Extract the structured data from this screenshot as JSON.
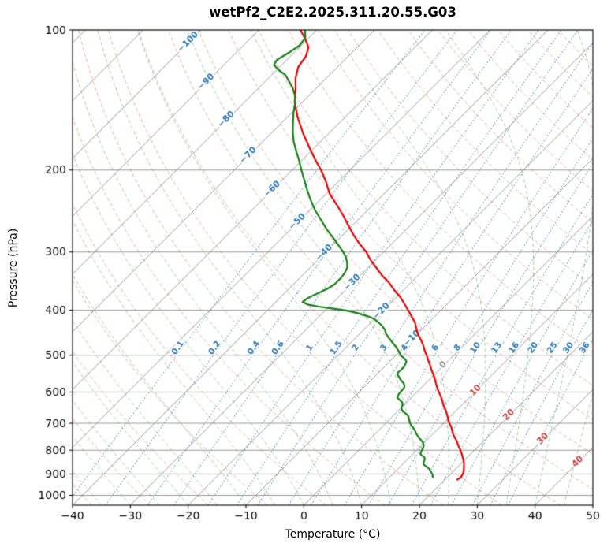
{
  "chart_data": {
    "type": "skewt_log_p",
    "title": "wetPf2_C2E2.2025.311.20.55.G03",
    "xlabel": "Temperature (°C)",
    "ylabel": "Pressure (hPa)",
    "xlim": [
      -40,
      50
    ],
    "plim": [
      100,
      1050
    ],
    "x_ticks": [
      -40,
      -30,
      -20,
      -10,
      0,
      10,
      20,
      30,
      40,
      50
    ],
    "pressure_ticks": [
      100,
      200,
      300,
      400,
      500,
      600,
      700,
      800,
      900,
      1000
    ],
    "pressure_gridlines": [
      100,
      200,
      300,
      400,
      500,
      600,
      700,
      800,
      900,
      1000
    ],
    "background": {
      "isotherms_c": {
        "start": -160,
        "end": 60,
        "step": 10
      },
      "dry_adiabats_theta_c": {
        "start": -40,
        "end": 180,
        "step": 10
      },
      "moist_adiabats_start_c": {
        "start": -120,
        "end": 45,
        "step": 5
      },
      "mixing_ratio_g_kg": [
        0.1,
        0.2,
        0.4,
        0.6,
        1,
        1.5,
        2,
        3,
        4,
        6,
        8,
        10,
        13,
        16,
        20,
        25,
        30,
        36
      ],
      "mixing_label_pressure_hpa": 490,
      "isotherm_labels": {
        "values": [
          -100,
          -90,
          -80,
          -70,
          -60,
          -50,
          -40,
          -30,
          -20,
          -10,
          0,
          10,
          20,
          30,
          40
        ],
        "placed_on_dry_adiabat_theta_k": 328
      }
    },
    "colors": {
      "temperature_line": "#e60000",
      "dewpoint_line": "#128012",
      "isotherm": "#838383",
      "pressure_grid": "#838383",
      "dry_adiabat": "#e05a46",
      "moist_adiabat": "#2c962c",
      "mixing_ratio": "#3c78b4",
      "label_negative": "#2e77b5",
      "label_zero": "#8a8a8a",
      "label_positive": "#cc4040",
      "frame": "#000000"
    },
    "series": [
      {
        "name": "temperature",
        "points": [
          [
            100,
            -82.8
          ],
          [
            105,
            -80.2
          ],
          [
            109,
            -78.4
          ],
          [
            114,
            -77.3
          ],
          [
            120,
            -76.8
          ],
          [
            127,
            -75.3
          ],
          [
            134,
            -73.4
          ],
          [
            143,
            -71.3
          ],
          [
            154,
            -68.2
          ],
          [
            167,
            -64.4
          ],
          [
            180,
            -60.6
          ],
          [
            190,
            -57.8
          ],
          [
            200,
            -55.0
          ],
          [
            212,
            -52.1
          ],
          [
            225,
            -49.4
          ],
          [
            237,
            -46.4
          ],
          [
            250,
            -43.4
          ],
          [
            262,
            -40.9
          ],
          [
            275,
            -38.3
          ],
          [
            288,
            -35.6
          ],
          [
            300,
            -33.0
          ],
          [
            312,
            -30.9
          ],
          [
            325,
            -28.4
          ],
          [
            337,
            -26.2
          ],
          [
            350,
            -23.6
          ],
          [
            362,
            -21.6
          ],
          [
            375,
            -19.3
          ],
          [
            388,
            -17.4
          ],
          [
            400,
            -15.7
          ],
          [
            412,
            -14.1
          ],
          [
            425,
            -12.4
          ],
          [
            437,
            -11.2
          ],
          [
            450,
            -9.9
          ],
          [
            462,
            -8.5
          ],
          [
            475,
            -7.1
          ],
          [
            488,
            -5.9
          ],
          [
            500,
            -4.7
          ],
          [
            512,
            -3.6
          ],
          [
            525,
            -2.4
          ],
          [
            538,
            -1.3
          ],
          [
            550,
            -0.2
          ],
          [
            562,
            0.8
          ],
          [
            575,
            1.8
          ],
          [
            588,
            2.8
          ],
          [
            600,
            3.8
          ],
          [
            612,
            4.8
          ],
          [
            625,
            5.8
          ],
          [
            638,
            6.7
          ],
          [
            650,
            7.6
          ],
          [
            662,
            8.5
          ],
          [
            675,
            9.4
          ],
          [
            688,
            10.2
          ],
          [
            700,
            11.0
          ],
          [
            712,
            11.9
          ],
          [
            725,
            12.7
          ],
          [
            738,
            13.5
          ],
          [
            750,
            14.3
          ],
          [
            762,
            15.2
          ],
          [
            775,
            16.0
          ],
          [
            788,
            16.8
          ],
          [
            800,
            17.6
          ],
          [
            812,
            18.3
          ],
          [
            825,
            19.0
          ],
          [
            838,
            19.7
          ],
          [
            850,
            20.3
          ],
          [
            862,
            20.8
          ],
          [
            875,
            21.3
          ],
          [
            888,
            21.8
          ],
          [
            900,
            22.1
          ],
          [
            912,
            22.3
          ],
          [
            920,
            22.3
          ],
          [
            925,
            22.1
          ]
        ]
      },
      {
        "name": "dewpoint",
        "points": [
          [
            100,
            -82.0
          ],
          [
            104,
            -80.6
          ],
          [
            108,
            -80.3
          ],
          [
            112,
            -80.9
          ],
          [
            116,
            -81.7
          ],
          [
            119,
            -81.3
          ],
          [
            122,
            -79.6
          ],
          [
            125,
            -77.6
          ],
          [
            128,
            -76.3
          ],
          [
            133,
            -74.2
          ],
          [
            138,
            -72.5
          ],
          [
            144,
            -71.0
          ],
          [
            151,
            -69.6
          ],
          [
            158,
            -68.1
          ],
          [
            166,
            -66.4
          ],
          [
            174,
            -64.6
          ],
          [
            182,
            -62.6
          ],
          [
            191,
            -60.4
          ],
          [
            200,
            -58.4
          ],
          [
            210,
            -56.2
          ],
          [
            221,
            -53.9
          ],
          [
            232,
            -51.6
          ],
          [
            243,
            -49.3
          ],
          [
            255,
            -46.6
          ],
          [
            268,
            -43.8
          ],
          [
            281,
            -40.9
          ],
          [
            292,
            -38.6
          ],
          [
            300,
            -37.0
          ],
          [
            308,
            -35.6
          ],
          [
            316,
            -34.5
          ],
          [
            324,
            -33.6
          ],
          [
            333,
            -33.1
          ],
          [
            342,
            -32.9
          ],
          [
            352,
            -32.9
          ],
          [
            359,
            -33.3
          ],
          [
            366,
            -34.0
          ],
          [
            372,
            -34.7
          ],
          [
            378,
            -35.2
          ],
          [
            384,
            -35.4
          ],
          [
            389,
            -34.1
          ],
          [
            393,
            -31.8
          ],
          [
            397,
            -28.9
          ],
          [
            401,
            -26.2
          ],
          [
            406,
            -23.9
          ],
          [
            412,
            -21.7
          ],
          [
            418,
            -20.0
          ],
          [
            425,
            -18.7
          ],
          [
            433,
            -17.4
          ],
          [
            441,
            -16.3
          ],
          [
            450,
            -15.4
          ],
          [
            459,
            -14.2
          ],
          [
            468,
            -13.0
          ],
          [
            477,
            -11.8
          ],
          [
            486,
            -10.7
          ],
          [
            494,
            -9.8
          ],
          [
            501,
            -9.1
          ],
          [
            506,
            -8.3
          ],
          [
            511,
            -7.6
          ],
          [
            516,
            -7.1
          ],
          [
            521,
            -6.9
          ],
          [
            527,
            -6.7
          ],
          [
            533,
            -6.6
          ],
          [
            539,
            -6.6
          ],
          [
            545,
            -6.7
          ],
          [
            551,
            -6.3
          ],
          [
            558,
            -5.6
          ],
          [
            565,
            -4.9
          ],
          [
            572,
            -4.1
          ],
          [
            579,
            -3.4
          ],
          [
            586,
            -3.0
          ],
          [
            593,
            -2.9
          ],
          [
            601,
            -2.9
          ],
          [
            609,
            -2.7
          ],
          [
            617,
            -2.4
          ],
          [
            624,
            -1.6
          ],
          [
            631,
            -0.8
          ],
          [
            638,
            -0.3
          ],
          [
            646,
            -0.1
          ],
          [
            653,
            0.3
          ],
          [
            661,
            1.0
          ],
          [
            669,
            2.0
          ],
          [
            676,
            2.7
          ],
          [
            684,
            3.2
          ],
          [
            692,
            3.7
          ],
          [
            700,
            4.2
          ],
          [
            709,
            4.9
          ],
          [
            718,
            5.7
          ],
          [
            727,
            6.4
          ],
          [
            736,
            7.0
          ],
          [
            745,
            7.7
          ],
          [
            754,
            8.4
          ],
          [
            763,
            9.2
          ],
          [
            772,
            9.9
          ],
          [
            781,
            10.4
          ],
          [
            790,
            10.7
          ],
          [
            800,
            10.9
          ],
          [
            808,
            11.1
          ],
          [
            815,
            11.3
          ],
          [
            822,
            11.9
          ],
          [
            829,
            12.6
          ],
          [
            837,
            13.0
          ],
          [
            845,
            13.2
          ],
          [
            853,
            13.4
          ],
          [
            861,
            13.9
          ],
          [
            869,
            14.7
          ],
          [
            877,
            15.4
          ],
          [
            885,
            15.9
          ],
          [
            893,
            16.4
          ],
          [
            901,
            16.9
          ],
          [
            908,
            17.2
          ],
          [
            915,
            17.5
          ]
        ]
      }
    ]
  }
}
